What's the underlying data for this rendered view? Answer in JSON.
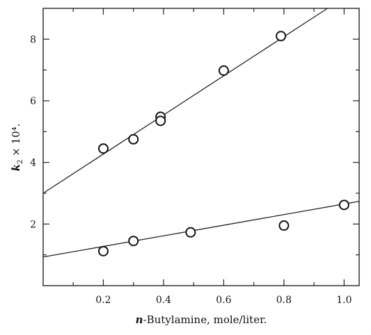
{
  "chart_data": {
    "type": "scatter",
    "title": "",
    "xlabel_italic": "n",
    "xlabel_rest": "-Butylamine, mole/liter.",
    "ylabel_italic": "k",
    "ylabel_sub": "2",
    "ylabel_rest": " × 10⁴.",
    "xlim": [
      0,
      1.05
    ],
    "ylim": [
      0,
      9
    ],
    "x_ticks_labeled": [
      0.2,
      0.4,
      0.6,
      0.8,
      1.0
    ],
    "x_tick_labels": [
      "0.2",
      "0.4",
      "0.6",
      "0.8",
      "1.0"
    ],
    "x_minor_ticks": [
      0.1,
      0.3,
      0.5,
      0.7,
      0.9
    ],
    "y_ticks_labeled": [
      2,
      4,
      6,
      8
    ],
    "y_tick_labels": [
      "2",
      "4",
      "6",
      "8"
    ],
    "y_minor_ticks": [
      1,
      3,
      5,
      7
    ],
    "grid": false,
    "series": [
      {
        "points": [
          {
            "x": 0.2,
            "y": 4.45
          },
          {
            "x": 0.3,
            "y": 4.75
          },
          {
            "x": 0.39,
            "y": 5.48
          },
          {
            "x": 0.39,
            "y": 5.35
          },
          {
            "x": 0.6,
            "y": 6.98
          },
          {
            "x": 0.79,
            "y": 8.1
          }
        ],
        "fit": {
          "intercept": 3.0,
          "slope": 6.35
        }
      },
      {
        "points": [
          {
            "x": 0.2,
            "y": 1.12
          },
          {
            "x": 0.3,
            "y": 1.45
          },
          {
            "x": 0.49,
            "y": 1.73
          },
          {
            "x": 0.8,
            "y": 1.95
          },
          {
            "x": 1.0,
            "y": 2.62
          }
        ],
        "fit": {
          "intercept": 0.93,
          "slope": 1.72
        }
      }
    ]
  }
}
